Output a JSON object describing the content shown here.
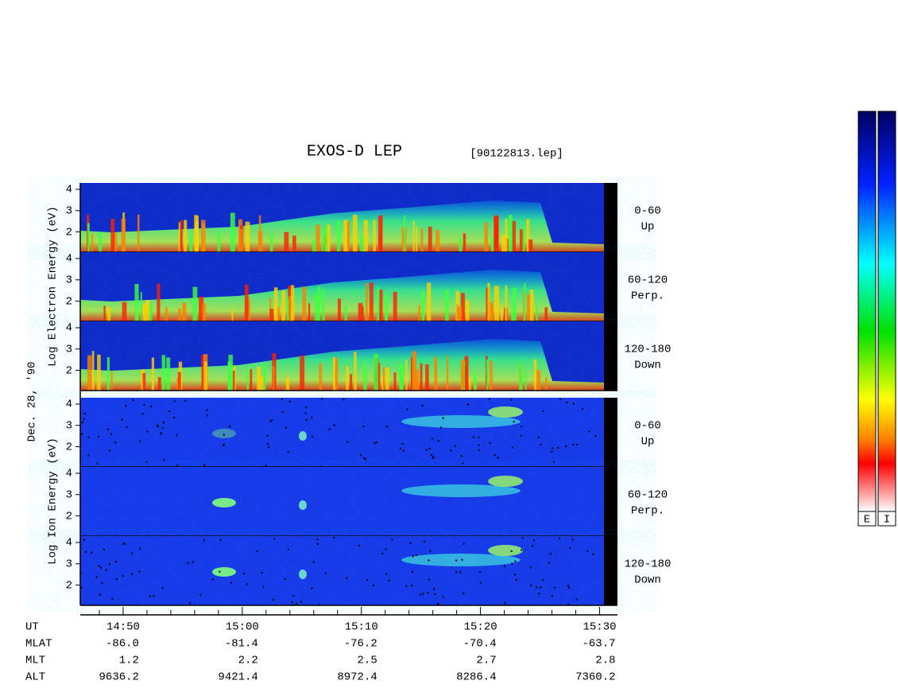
{
  "header": {
    "title": "EXOS-D LEP",
    "file": "[90122813.lep]"
  },
  "y_axis": {
    "electron_label": "Log Electron Energy (eV)",
    "ion_label": "Log Ion Energy (eV)",
    "date": "Dec. 28, '90",
    "ylim": [
      1.05,
      4.3
    ],
    "yticks": [
      2,
      3,
      4
    ]
  },
  "electron_panels": [
    {
      "pitch": "0-60",
      "direction": "Up"
    },
    {
      "pitch": "60-120",
      "direction": "Perp."
    },
    {
      "pitch": "120-180",
      "direction": "Down"
    }
  ],
  "ion_panels": [
    {
      "pitch": "0-60",
      "direction": "Up"
    },
    {
      "pitch": "60-120",
      "direction": "Perp."
    },
    {
      "pitch": "120-180",
      "direction": "Down"
    }
  ],
  "x_axis": {
    "xlim": [
      46.4,
      91.5
    ],
    "xticks": [
      {
        "value": 50,
        "label": "14:50"
      },
      {
        "value": 60,
        "label": "15:00"
      },
      {
        "value": 70,
        "label": "15:10"
      },
      {
        "value": 80,
        "label": "15:20"
      },
      {
        "value": 90,
        "label": "15:30"
      }
    ],
    "xminor": [
      48,
      52,
      54,
      56,
      58,
      62,
      64,
      66,
      68,
      72,
      74,
      76,
      78,
      82,
      84,
      86,
      88
    ]
  },
  "ephemeris": {
    "time_label": "UT",
    "rows": [
      {
        "label": "MLAT",
        "values": [
          "-86.0",
          "-81.4",
          "-76.2",
          "-70.4",
          "-63.7"
        ]
      },
      {
        "label": "MLT",
        "values": [
          "1.2",
          "2.2",
          "2.5",
          "2.7",
          "2.8"
        ]
      },
      {
        "label": "ALT",
        "values": [
          "9636.2",
          "9421.4",
          "8972.4",
          "8286.4",
          "7360.2"
        ]
      }
    ]
  },
  "colorbar": {
    "labels": [
      "E",
      "I"
    ]
  }
}
